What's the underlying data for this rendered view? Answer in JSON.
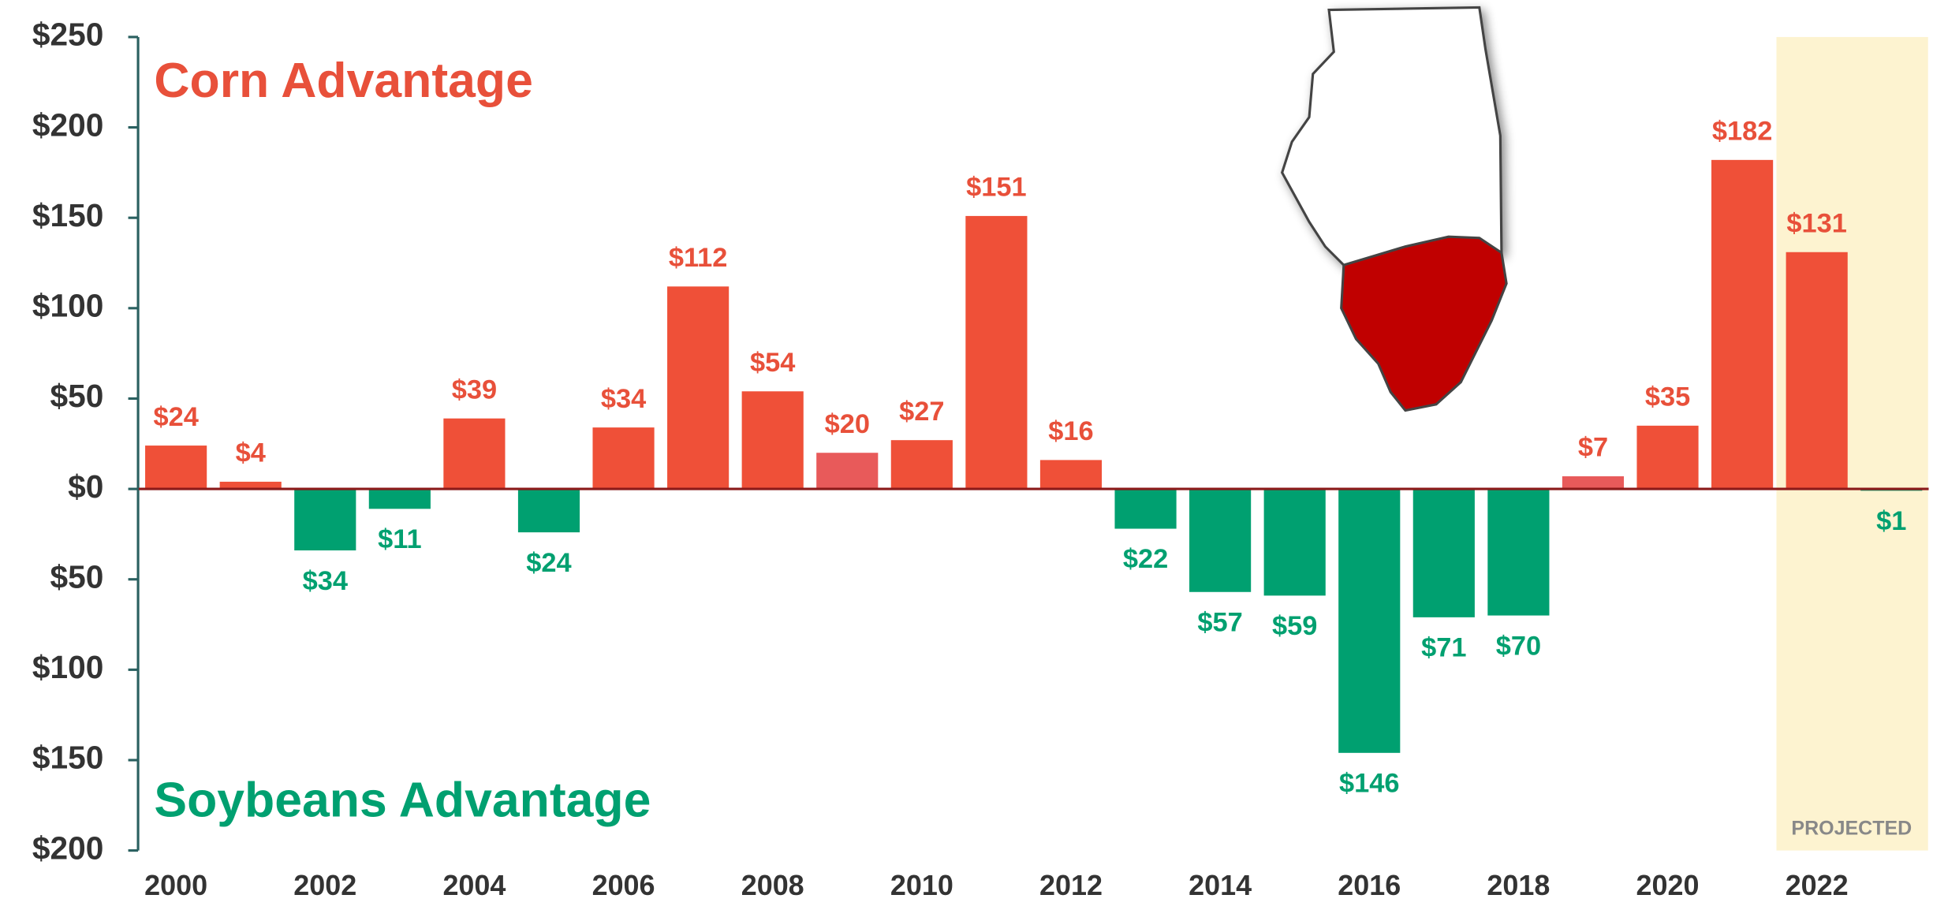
{
  "chart_data": {
    "type": "bar",
    "categories": [
      "2000",
      null,
      "2002",
      null,
      "2004",
      null,
      "2006",
      null,
      "2008",
      null,
      "2010",
      null,
      "2012",
      null,
      "2014",
      null,
      "2016",
      null,
      "2018",
      null,
      "2020",
      null,
      "2022",
      null
    ],
    "values": [
      24,
      4,
      -34,
      -11,
      39,
      -24,
      34,
      112,
      54,
      20,
      27,
      151,
      16,
      -22,
      -57,
      -59,
      -146,
      -71,
      -70,
      7,
      35,
      182,
      131,
      -1
    ],
    "value_labels": [
      "$24",
      "$4",
      "$34",
      "$11",
      "$39",
      "$24",
      "$34",
      "$112",
      "$54",
      "$20",
      "$27",
      "$151",
      "$16",
      "$22",
      "$57",
      "$59",
      "$146",
      "$71",
      "$70",
      "$7",
      "$35",
      "$182",
      "$131",
      "$1"
    ],
    "colors": [
      "#ef5038",
      "#ef5038",
      "#00a070",
      "#00a070",
      "#ef5038",
      "#00a070",
      "#ef5038",
      "#ef5038",
      "#ef5038",
      "#e85a5a",
      "#ef5038",
      "#ef5038",
      "#ef5038",
      "#00a070",
      "#00a070",
      "#00a070",
      "#00a070",
      "#00a070",
      "#00a070",
      "#e85a5a",
      "#ef5038",
      "#ef5038",
      "#ef5038",
      "#00a070"
    ],
    "ylim": [
      -200,
      250
    ],
    "yticks": [
      {
        "value": -200,
        "label": "$200"
      },
      {
        "value": -150,
        "label": "$150"
      },
      {
        "value": -100,
        "label": "$100"
      },
      {
        "value": -50,
        "label": "$50"
      },
      {
        "value": 0,
        "label": "$0"
      },
      {
        "value": 50,
        "label": "$50"
      },
      {
        "value": 100,
        "label": "$100"
      },
      {
        "value": 150,
        "label": "$150"
      },
      {
        "value": 200,
        "label": "$200"
      },
      {
        "value": 250,
        "label": "$250"
      }
    ],
    "annotations": [
      "Corn Advantage",
      "Soybeans Advantage",
      "PROJECTED"
    ]
  }
}
